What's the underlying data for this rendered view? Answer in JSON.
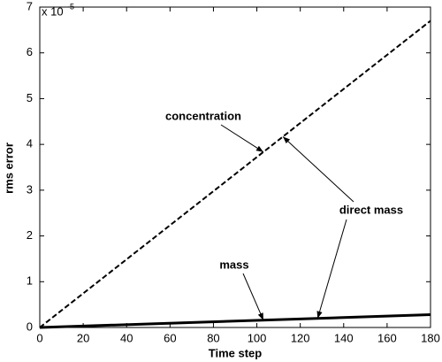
{
  "chart_data": {
    "type": "line",
    "x_label": "Time step",
    "y_label": "rms error",
    "y_scale_label": {
      "base": "x 10",
      "exponent": "-5"
    },
    "x": [
      0,
      180
    ],
    "series": [
      {
        "color": "#000000",
        "style": "dashed",
        "values": [
          0,
          6.7
        ]
      },
      {
        "color": "#000000",
        "style": "solid",
        "values": [
          0,
          0.28
        ]
      }
    ],
    "annotations": [
      {
        "text": "concentration",
        "series": [
          0
        ]
      },
      {
        "text": "direct mass",
        "series": [
          0,
          1
        ]
      },
      {
        "text": "mass",
        "series": [
          1
        ]
      }
    ],
    "xlim": [
      0,
      180
    ],
    "xticks": [
      0,
      20,
      40,
      60,
      80,
      100,
      120,
      140,
      160,
      180
    ],
    "ylim": [
      0,
      7
    ],
    "yticks": [
      0,
      1,
      2,
      3,
      4,
      5,
      6,
      7
    ],
    "grid": false
  }
}
